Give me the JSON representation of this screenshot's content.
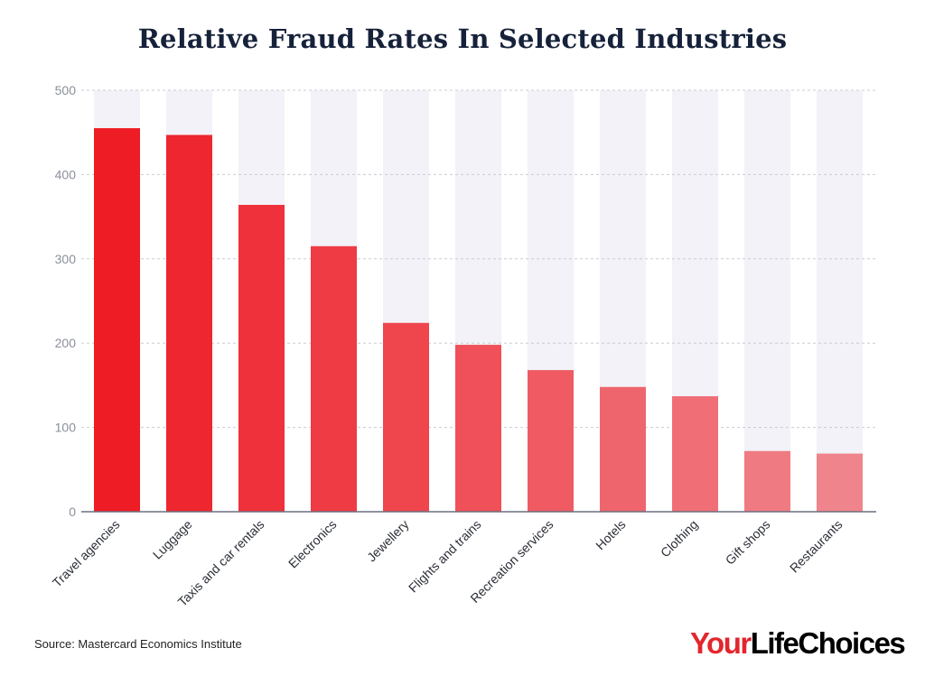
{
  "chart_data": {
    "type": "bar",
    "title": "Relative Fraud Rates In Selected Industries",
    "categories": [
      "Travel agencies",
      "Luggage",
      "Taxis and car rentals",
      "Electronics",
      "Jewellery",
      "Flights and trains",
      "Recreation services",
      "Hotels",
      "Clothing",
      "Gift shops",
      "Restaurants"
    ],
    "values": [
      455,
      447,
      364,
      315,
      224,
      198,
      168,
      148,
      137,
      72,
      69
    ],
    "ylim": [
      0,
      500
    ],
    "yticks": [
      0,
      100,
      200,
      300,
      400,
      500
    ],
    "xlabel": "",
    "ylabel": "",
    "grid": true,
    "bar_color_start": "#ee1c25",
    "bar_color_end": "#f0848c",
    "track_color": "#f2f2f8"
  },
  "footer": {
    "source": "Source: Mastercard Economics Institute",
    "logo_your": "Your",
    "logo_rest": "LifeChoices"
  }
}
